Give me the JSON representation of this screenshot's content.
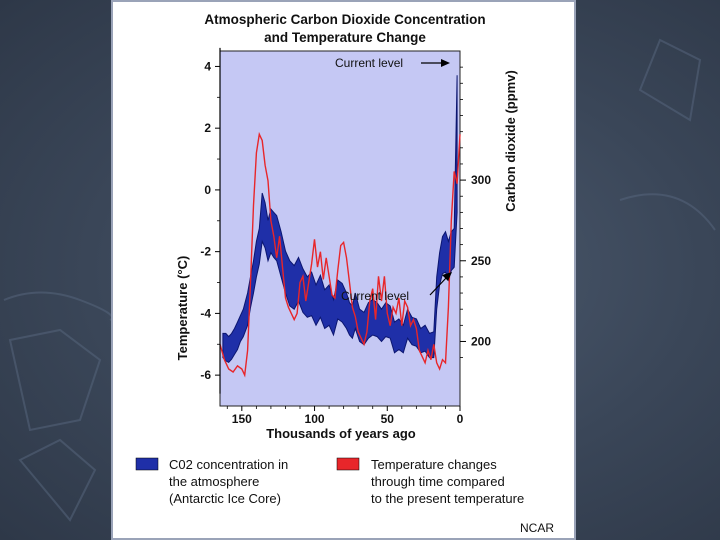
{
  "colors": {
    "co2": "#1f2fa8",
    "co2_edge": "#0c1670",
    "temperature": "#e8262a",
    "plot_bg": "#c5c8f4",
    "slide_bg": "#3a4658"
  },
  "chart_data": {
    "type": "area",
    "title_line1": "Atmospheric Carbon Dioxide Concentration",
    "title_line2": "and Temperature Change",
    "xlabel": "Thousands of years ago",
    "xlim": [
      165,
      0
    ],
    "x_ticks": [
      150,
      100,
      50,
      0
    ],
    "ylabel_left": "Temperature (°C)",
    "ylim_left": [
      -7,
      4.5
    ],
    "y_ticks_left": [
      4,
      2,
      0,
      -2,
      -4,
      -6
    ],
    "ylabel_right": "Carbon dioxide (ppmv)",
    "ylim_right": [
      160,
      380
    ],
    "y_ticks_right": [
      300,
      250,
      200
    ],
    "grid": false,
    "annotation_co2": "Current level",
    "annotation_temp": "Current level",
    "series": [
      {
        "name": "C02 concentration in the atmosphere (Antarctic Ice Core)",
        "axis": "right",
        "kind": "band",
        "x": [
          163,
          161,
          159,
          157,
          155,
          153,
          151,
          149,
          146,
          144,
          142,
          140,
          138,
          136,
          134,
          132,
          130,
          128,
          126,
          123,
          120,
          117,
          114,
          111,
          108,
          105,
          102,
          99,
          96,
          93,
          90,
          87,
          84,
          81,
          78,
          76,
          74,
          72,
          69,
          66,
          63,
          60,
          57,
          54,
          51,
          48,
          45,
          42,
          39,
          36,
          33,
          30,
          27,
          24,
          21,
          18,
          16,
          14,
          12,
          10,
          8,
          6,
          4,
          2
        ],
        "low": [
          190,
          188,
          187,
          189,
          192,
          195,
          200,
          203,
          210,
          221,
          230,
          240,
          248,
          262,
          258,
          250,
          255,
          252,
          250,
          240,
          230,
          222,
          220,
          225,
          218,
          215,
          216,
          210,
          215,
          208,
          210,
          204,
          214,
          212,
          208,
          204,
          202,
          208,
          200,
          198,
          202,
          204,
          203,
          200,
          203,
          202,
          193,
          195,
          193,
          202,
          198,
          197,
          193,
          194,
          190,
          190,
          220,
          235,
          242,
          243,
          238,
          244,
          246,
          280
        ],
        "high": [
          205,
          205,
          203,
          205,
          208,
          212,
          216,
          220,
          230,
          240,
          250,
          262,
          270,
          292,
          286,
          275,
          282,
          280,
          278,
          268,
          256,
          250,
          247,
          252,
          245,
          240,
          243,
          235,
          241,
          232,
          235,
          226,
          238,
          236,
          230,
          224,
          222,
          230,
          220,
          218,
          224,
          226,
          224,
          220,
          224,
          222,
          212,
          214,
          210,
          220,
          215,
          214,
          208,
          210,
          205,
          206,
          240,
          255,
          265,
          268,
          262,
          268,
          270,
          365
        ]
      },
      {
        "name": "Temperature changes through time compared to the present temperature",
        "axis": "left",
        "kind": "line",
        "x": [
          165,
          162,
          159,
          156,
          153,
          150,
          148,
          146,
          144,
          142,
          140,
          138,
          136,
          134,
          132,
          130,
          128,
          126,
          124,
          122,
          120,
          118,
          116,
          114,
          112,
          110,
          108,
          106,
          104,
          102,
          100,
          98,
          96,
          94,
          92,
          90,
          88,
          86,
          84,
          82,
          80,
          78,
          76,
          74,
          72,
          70,
          68,
          66,
          64,
          62,
          60,
          58,
          56,
          54,
          52,
          50,
          48,
          46,
          44,
          42,
          40,
          38,
          36,
          34,
          32,
          30,
          28,
          26,
          24,
          22,
          20,
          18,
          16,
          14,
          12,
          10,
          8,
          6,
          4,
          2,
          0
        ],
        "values": [
          -5.0,
          -5.5,
          -5.8,
          -5.9,
          -5.7,
          -5.8,
          -6.0,
          -5.2,
          -3.0,
          -0.5,
          1.2,
          1.8,
          1.6,
          0.8,
          0.3,
          -1.0,
          -1.5,
          -2.2,
          -1.5,
          -2.5,
          -3.5,
          -3.8,
          -4.0,
          -4.2,
          -4.0,
          -3.0,
          -2.8,
          -3.6,
          -3.0,
          -2.4,
          -1.6,
          -2.5,
          -2.0,
          -2.9,
          -2.2,
          -2.8,
          -3.4,
          -3.5,
          -2.6,
          -1.8,
          -1.7,
          -2.2,
          -3.0,
          -3.8,
          -4.1,
          -4.6,
          -4.8,
          -5.0,
          -4.6,
          -3.6,
          -3.2,
          -4.2,
          -2.8,
          -3.6,
          -2.8,
          -4.0,
          -4.4,
          -3.8,
          -4.0,
          -3.5,
          -4.4,
          -3.6,
          -3.8,
          -4.4,
          -4.2,
          -4.5,
          -5.2,
          -5.4,
          -5.6,
          -5.2,
          -5.5,
          -5.0,
          -5.6,
          -5.8,
          -5.5,
          -5.6,
          -3.8,
          -1.0,
          0.6,
          0.2,
          1.8
        ]
      }
    ]
  },
  "legend": {
    "co2_lines": [
      "C02 concentration in",
      "the atmosphere",
      "(Antarctic Ice Core)"
    ],
    "temp_lines": [
      "Temperature changes",
      "through time compared",
      "to the present temperature"
    ]
  },
  "credit": "NCAR"
}
